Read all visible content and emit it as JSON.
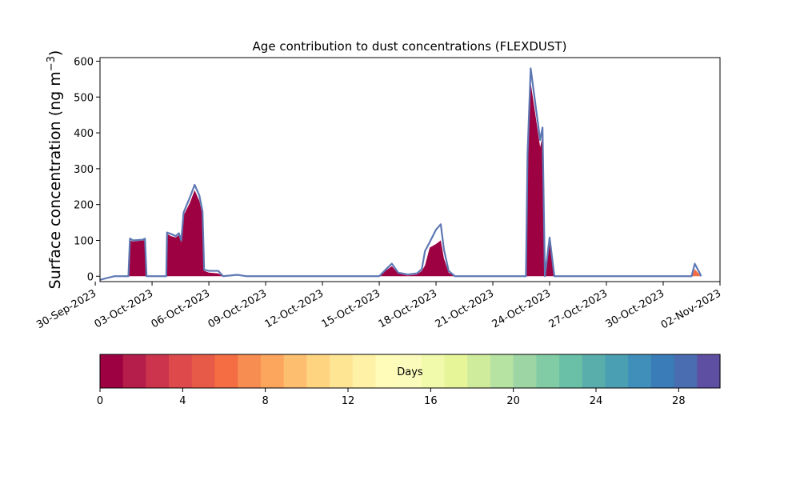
{
  "chart_data": {
    "type": "area",
    "title": "Age contribution to dust concentrations (FLEXDUST)",
    "ylabel": "Surface concentration (ng m⁻³)",
    "xlabel": "",
    "ylim": [
      -15,
      610
    ],
    "xlim": [
      "2023-09-30T06:00",
      "2023-11-02T00:00"
    ],
    "yticks": [
      0,
      100,
      200,
      300,
      400,
      500,
      600
    ],
    "xticks": [
      "30-Sep-2023",
      "03-Oct-2023",
      "06-Oct-2023",
      "09-Oct-2023",
      "12-Oct-2023",
      "15-Oct-2023",
      "18-Oct-2023",
      "21-Oct-2023",
      "24-Oct-2023",
      "27-Oct-2023",
      "30-Oct-2023",
      "02-Nov-2023"
    ],
    "grid": false,
    "colors": {
      "age_0_1_days": "#9e0142",
      "total_outline": "#5e78b4"
    },
    "series": [
      {
        "color": "#9e0142",
        "points": [
          [
            "2023-10-01T00:00",
            0
          ],
          [
            "2023-10-01T18:00",
            0
          ],
          [
            "2023-10-01T20:00",
            100
          ],
          [
            "2023-10-02T00:00",
            97
          ],
          [
            "2023-10-02T12:00",
            100
          ],
          [
            "2023-10-02T15:00",
            100
          ],
          [
            "2023-10-02T17:00",
            0
          ],
          [
            "2023-10-03T18:00",
            0
          ],
          [
            "2023-10-03T19:00",
            118
          ],
          [
            "2023-10-04T00:00",
            112
          ],
          [
            "2023-10-04T06:00",
            108
          ],
          [
            "2023-10-04T10:00",
            115
          ],
          [
            "2023-10-04T13:00",
            95
          ],
          [
            "2023-10-04T16:00",
            170
          ],
          [
            "2023-10-05T00:00",
            205
          ],
          [
            "2023-10-05T06:00",
            240
          ],
          [
            "2023-10-05T12:00",
            210
          ],
          [
            "2023-10-05T16:00",
            170
          ],
          [
            "2023-10-05T18:00",
            15
          ],
          [
            "2023-10-06T00:00",
            10
          ],
          [
            "2023-10-06T12:00",
            8
          ],
          [
            "2023-10-06T18:00",
            0
          ],
          [
            "2023-10-15T00:00",
            0
          ],
          [
            "2023-10-15T08:00",
            15
          ],
          [
            "2023-10-15T16:00",
            28
          ],
          [
            "2023-10-16T00:00",
            8
          ],
          [
            "2023-10-16T12:00",
            2
          ],
          [
            "2023-10-17T00:00",
            5
          ],
          [
            "2023-10-17T06:00",
            15
          ],
          [
            "2023-10-17T10:00",
            30
          ],
          [
            "2023-10-17T16:00",
            80
          ],
          [
            "2023-10-18T00:00",
            90
          ],
          [
            "2023-10-18T06:00",
            100
          ],
          [
            "2023-10-18T10:00",
            50
          ],
          [
            "2023-10-18T16:00",
            10
          ],
          [
            "2023-10-19T00:00",
            0
          ],
          [
            "2023-10-22T18:00",
            0
          ],
          [
            "2023-10-22T20:00",
            330
          ],
          [
            "2023-10-23T00:00",
            540
          ],
          [
            "2023-10-23T06:00",
            450
          ],
          [
            "2023-10-23T12:00",
            360
          ],
          [
            "2023-10-23T15:00",
            390
          ],
          [
            "2023-10-23T18:00",
            0
          ],
          [
            "2023-10-24T00:00",
            95
          ],
          [
            "2023-10-24T06:00",
            0
          ],
          [
            "2023-11-01T00:00",
            0
          ]
        ]
      },
      {
        "color": "#f46d43",
        "points": [
          [
            "2023-10-31T12:00",
            0
          ],
          [
            "2023-10-31T16:00",
            20
          ],
          [
            "2023-10-31T22:00",
            5
          ],
          [
            "2023-11-01T00:00",
            0
          ]
        ]
      }
    ],
    "total": [
      [
        "2023-09-30T06:00",
        -10
      ],
      [
        "2023-10-01T00:00",
        0
      ],
      [
        "2023-10-01T18:00",
        0
      ],
      [
        "2023-10-01T20:00",
        105
      ],
      [
        "2023-10-02T00:00",
        100
      ],
      [
        "2023-10-02T12:00",
        102
      ],
      [
        "2023-10-02T15:00",
        105
      ],
      [
        "2023-10-02T17:00",
        0
      ],
      [
        "2023-10-03T18:00",
        0
      ],
      [
        "2023-10-03T19:00",
        122
      ],
      [
        "2023-10-04T00:00",
        118
      ],
      [
        "2023-10-04T06:00",
        112
      ],
      [
        "2023-10-04T10:00",
        120
      ],
      [
        "2023-10-04T13:00",
        100
      ],
      [
        "2023-10-04T16:00",
        178
      ],
      [
        "2023-10-05T00:00",
        220
      ],
      [
        "2023-10-05T06:00",
        255
      ],
      [
        "2023-10-05T12:00",
        225
      ],
      [
        "2023-10-05T16:00",
        180
      ],
      [
        "2023-10-05T18:00",
        18
      ],
      [
        "2023-10-06T00:00",
        15
      ],
      [
        "2023-10-06T12:00",
        15
      ],
      [
        "2023-10-06T18:00",
        0
      ],
      [
        "2023-10-07T12:00",
        4
      ],
      [
        "2023-10-08T00:00",
        0
      ],
      [
        "2023-10-15T00:00",
        0
      ],
      [
        "2023-10-15T08:00",
        18
      ],
      [
        "2023-10-15T16:00",
        35
      ],
      [
        "2023-10-16T00:00",
        10
      ],
      [
        "2023-10-16T12:00",
        5
      ],
      [
        "2023-10-17T00:00",
        8
      ],
      [
        "2023-10-17T06:00",
        20
      ],
      [
        "2023-10-17T10:00",
        70
      ],
      [
        "2023-10-17T16:00",
        95
      ],
      [
        "2023-10-18T00:00",
        130
      ],
      [
        "2023-10-18T06:00",
        145
      ],
      [
        "2023-10-18T10:00",
        75
      ],
      [
        "2023-10-18T16:00",
        15
      ],
      [
        "2023-10-19T00:00",
        0
      ],
      [
        "2023-10-22T18:00",
        0
      ],
      [
        "2023-10-22T20:00",
        340
      ],
      [
        "2023-10-23T00:00",
        580
      ],
      [
        "2023-10-23T06:00",
        480
      ],
      [
        "2023-10-23T12:00",
        380
      ],
      [
        "2023-10-23T15:00",
        415
      ],
      [
        "2023-10-23T18:00",
        0
      ],
      [
        "2023-10-24T00:00",
        108
      ],
      [
        "2023-10-24T06:00",
        0
      ],
      [
        "2023-10-31T12:00",
        0
      ],
      [
        "2023-10-31T16:00",
        35
      ],
      [
        "2023-10-31T22:00",
        10
      ],
      [
        "2023-11-01T00:00",
        0
      ]
    ]
  },
  "colorbar": {
    "label": "Days",
    "min": 0,
    "max": 30,
    "ticks": [
      "0",
      "4",
      "8",
      "12",
      "16",
      "20",
      "24",
      "28"
    ],
    "colors": [
      "#9e0142",
      "#b51e4a",
      "#cc334c",
      "#de4a4c",
      "#e85a48",
      "#f46d43",
      "#f88d52",
      "#fca55d",
      "#fdbf6f",
      "#fed481",
      "#fee593",
      "#fff2a6",
      "#fffbb9",
      "#fbfcbb",
      "#f1f9ab",
      "#e6f598",
      "#cfec9d",
      "#b6e2a2",
      "#9dd5a4",
      "#82cca5",
      "#6ac0a6",
      "#59aeac",
      "#4b9fb3",
      "#3f8fba",
      "#3a7cb8",
      "#4a6db2",
      "#5e4fa2"
    ]
  }
}
